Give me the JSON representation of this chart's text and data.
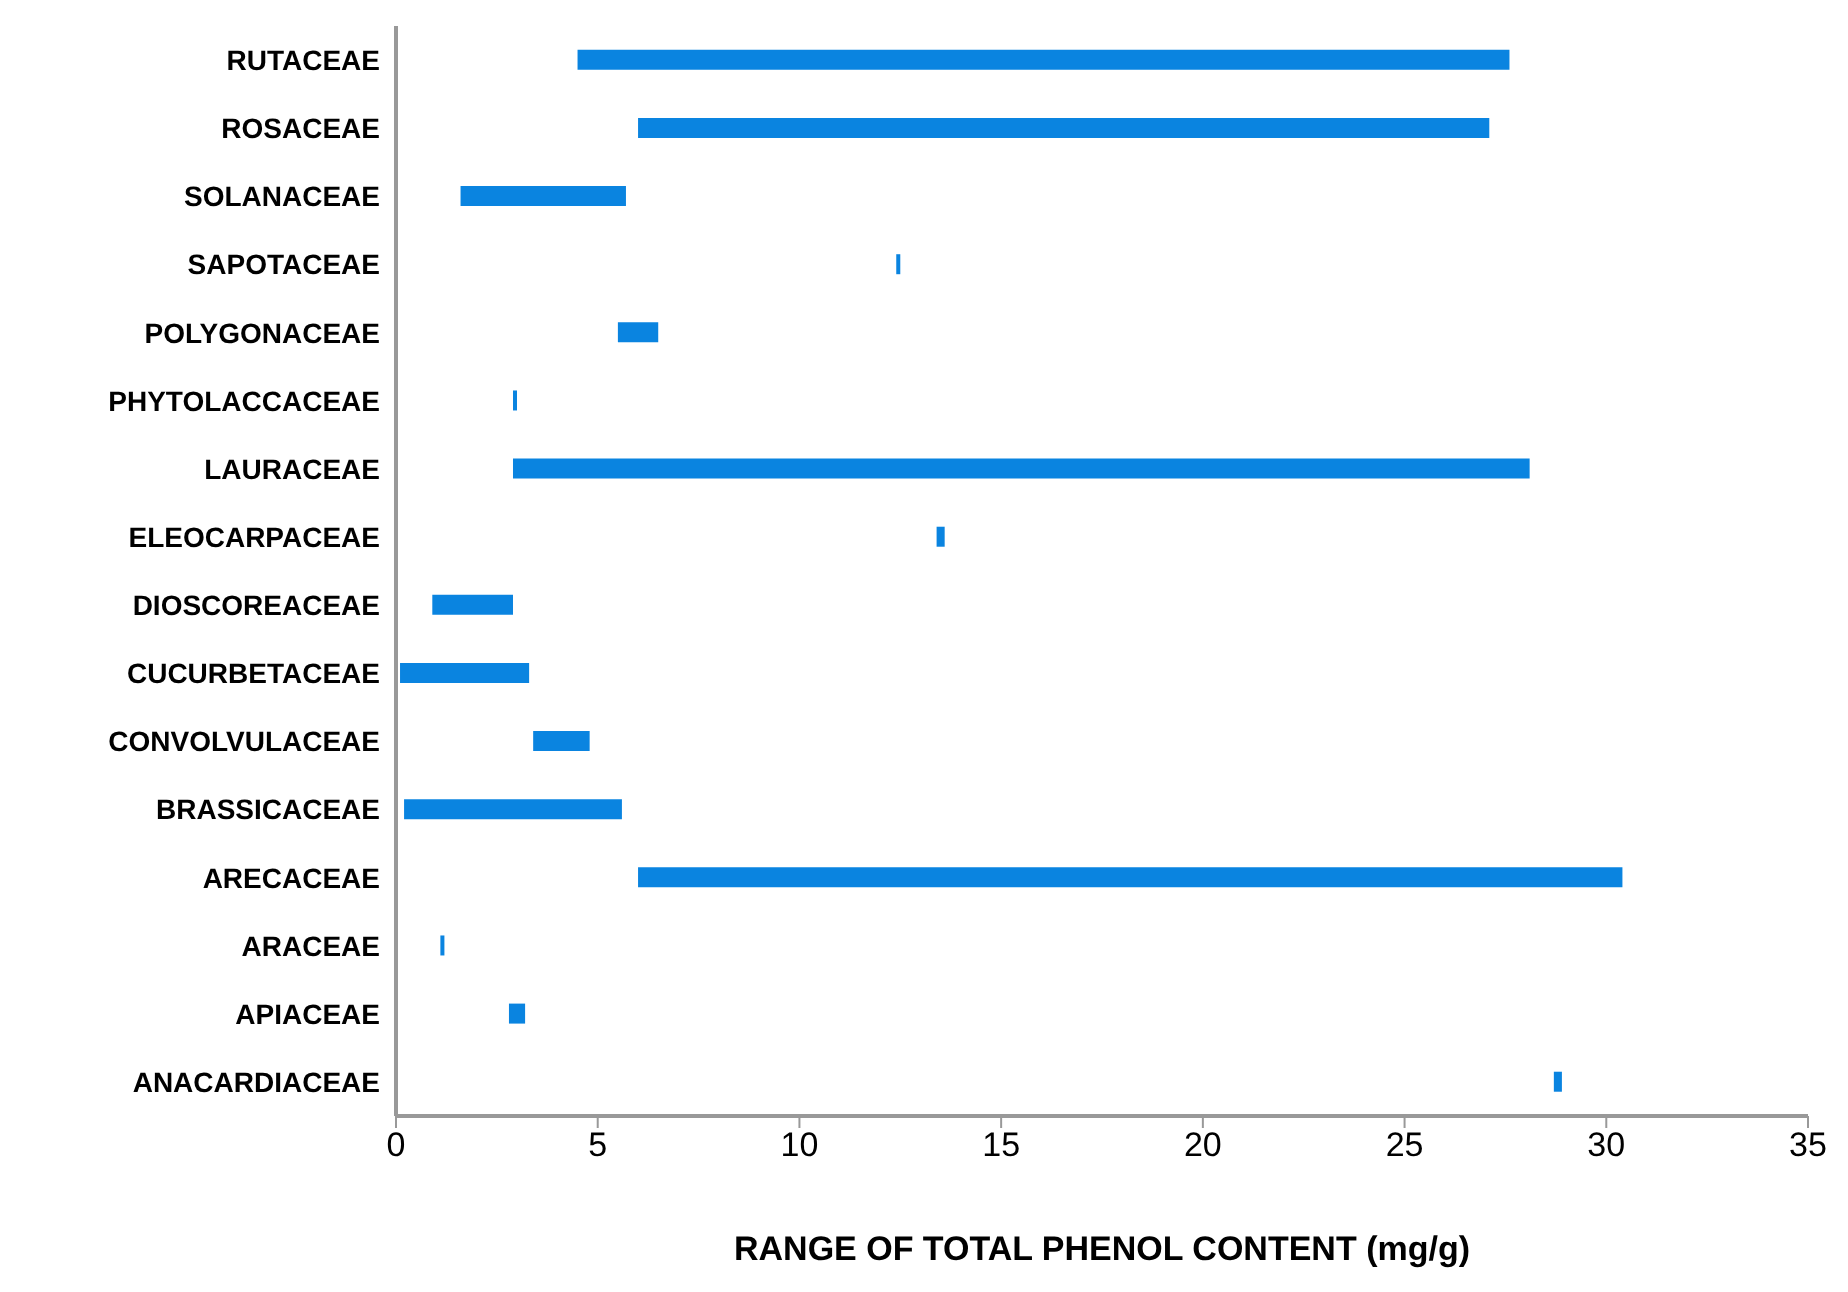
{
  "chart_data": {
    "type": "bar",
    "orientation": "horizontal",
    "xlabel": "RANGE OF TOTAL PHENOL CONTENT (mg/g)",
    "categories": [
      "RUTACEAE",
      "ROSACEAE",
      "SOLANACEAE",
      "SAPOTACEAE",
      "POLYGONACEAE",
      "PHYTOLACCACEAE",
      "LAURACEAE",
      "ELEOCARPACEAE",
      "DIOSCOREACEAE",
      "CUCURBETACEAE",
      "CONVOLVULACEAE",
      "BRASSICACEAE",
      "ARECACEAE",
      "ARACEAE",
      "APIACEAE",
      "ANACARDIACEAE"
    ],
    "base": [
      4.5,
      6.0,
      1.6,
      12.4,
      5.5,
      2.9,
      2.9,
      13.4,
      0.9,
      0.1,
      3.4,
      0.2,
      6.0,
      1.1,
      2.8,
      28.7
    ],
    "values": [
      23.1,
      21.1,
      4.1,
      0.1,
      1.0,
      0.1,
      25.2,
      0.2,
      2.0,
      3.2,
      1.4,
      5.4,
      24.4,
      0.1,
      0.4,
      0.2
    ],
    "color": "#0a84e0",
    "xlim": [
      0,
      35
    ],
    "xticks": [
      0,
      5,
      10,
      15,
      20,
      25,
      30,
      35
    ],
    "grid": false
  }
}
